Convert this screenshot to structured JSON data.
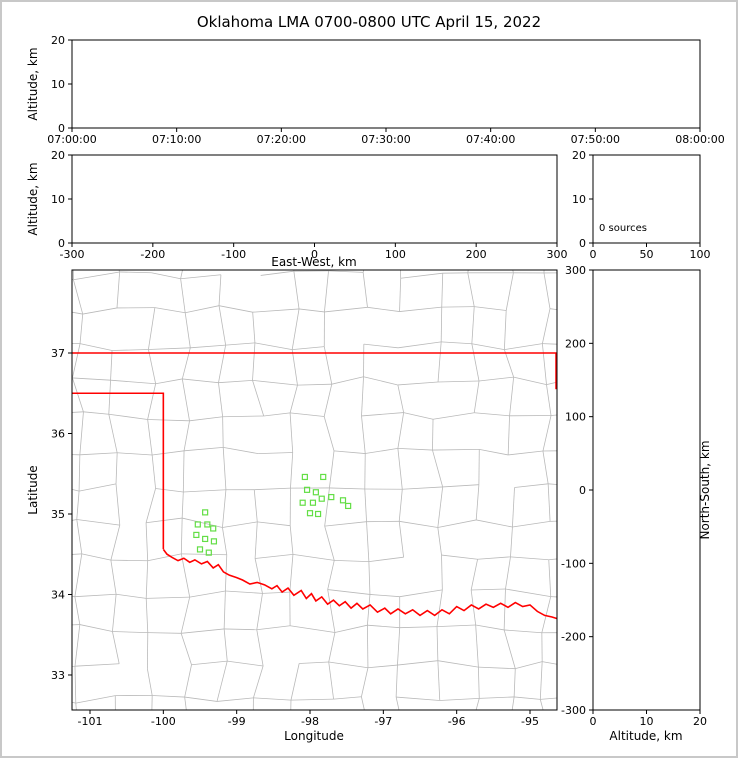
{
  "title": "Oklahoma LMA 0700-0800 UTC April 15, 2022",
  "colors": {
    "state_border": "#ff0000",
    "county": "#b9b9b9",
    "station": "#63de45",
    "axis": "#000000",
    "background": "#ffffff",
    "outer_border": "#c8c8c8"
  },
  "panels": {
    "time_height": {
      "ylabel": "Altitude, km",
      "xlim": [
        0,
        3600
      ],
      "ylim": [
        0,
        20
      ],
      "x_ticks": [
        0,
        600,
        1200,
        1800,
        2400,
        3000,
        3600
      ],
      "x_tick_labels": [
        "07:00:00",
        "07:10:00",
        "07:20:00",
        "07:30:00",
        "07:40:00",
        "07:50:00",
        "08:00:00"
      ],
      "y_ticks": [
        0,
        10,
        20
      ],
      "y_tick_labels": [
        "0",
        "10",
        "20"
      ]
    },
    "ew_height": {
      "ylabel": "Altitude, km",
      "xlabel": "East-West, km",
      "xlim": [
        -300,
        300
      ],
      "ylim": [
        0,
        20
      ],
      "x_ticks": [
        -300,
        -200,
        -100,
        0,
        100,
        200,
        300
      ],
      "x_tick_labels": [
        "-300",
        "-200",
        "-100",
        "0",
        "100",
        "200",
        "300"
      ],
      "y_ticks": [
        0,
        10,
        20
      ],
      "y_tick_labels": [
        "0",
        "10",
        "20"
      ]
    },
    "source_histogram": {
      "annotation": "0 sources",
      "xlim": [
        0,
        100
      ],
      "ylim": [
        0,
        20
      ],
      "x_ticks": [
        0,
        50,
        100
      ],
      "x_tick_labels": [
        "0",
        "50",
        "100"
      ],
      "y_ticks": [
        0,
        10,
        20
      ],
      "y_tick_labels": [
        "0",
        "10",
        "20"
      ]
    },
    "plan_view": {
      "xlabel": "Longitude",
      "ylabel": "Latitude",
      "xlim": [
        -101.2455,
        -94.6319
      ],
      "ylim": [
        32.565,
        38.031
      ],
      "x_ticks": [
        -101,
        -100,
        -99,
        -98,
        -97,
        -96,
        -95
      ],
      "x_tick_labels": [
        "-101",
        "-100",
        "-99",
        "-98",
        "-97",
        "-96",
        "-95"
      ],
      "y_ticks": [
        33,
        34,
        35,
        36,
        37
      ],
      "y_tick_labels": [
        "33",
        "34",
        "35",
        "36",
        "37"
      ]
    },
    "ns_height": {
      "xlabel": "Altitude, km",
      "ylabel_right": "North-South, km",
      "xlim": [
        0,
        20
      ],
      "ylim": [
        -300,
        300
      ],
      "x_ticks": [
        0,
        10,
        20
      ],
      "x_tick_labels": [
        "0",
        "10",
        "20"
      ],
      "y_ticks": [
        300,
        200,
        100,
        0,
        -100,
        -200,
        -300
      ],
      "y_tick_labels": [
        "300",
        "200",
        "100",
        "0",
        "-100",
        "-200",
        "-300"
      ]
    }
  },
  "chart_data": {
    "type": "scatter",
    "title": "Oklahoma LMA 0700-0800 UTC April 15, 2022",
    "time_range_utc": [
      "07:00:00",
      "08:00:00"
    ],
    "date": "April 15, 2022",
    "sources_count": 0,
    "lightning_sources": [],
    "stations_lon_lat": [
      [
        -99.43,
        35.02
      ],
      [
        -99.53,
        34.87
      ],
      [
        -99.4,
        34.87
      ],
      [
        -99.32,
        34.82
      ],
      [
        -99.55,
        34.74
      ],
      [
        -99.43,
        34.69
      ],
      [
        -99.31,
        34.66
      ],
      [
        -99.5,
        34.56
      ],
      [
        -99.38,
        34.52
      ],
      [
        -98.07,
        35.46
      ],
      [
        -97.82,
        35.46
      ],
      [
        -98.04,
        35.3
      ],
      [
        -97.92,
        35.27
      ],
      [
        -98.1,
        35.14
      ],
      [
        -97.96,
        35.14
      ],
      [
        -97.84,
        35.19
      ],
      [
        -97.71,
        35.21
      ],
      [
        -98.0,
        35.01
      ],
      [
        -97.89,
        35.0
      ],
      [
        -97.55,
        35.17
      ],
      [
        -97.48,
        35.1
      ]
    ],
    "state_border_lon_lat": {
      "north": [
        [
          -101.25,
          37.0
        ],
        [
          -94.63,
          37.0
        ]
      ],
      "east": [
        [
          -94.645,
          37.0
        ],
        [
          -94.645,
          36.55
        ]
      ],
      "panhandle_and_west": [
        [
          -101.25,
          36.5
        ],
        [
          -100.0,
          36.5
        ],
        [
          -100.0,
          34.563
        ]
      ],
      "red_river_south": [
        [
          -100.0,
          34.56
        ],
        [
          -99.95,
          34.5
        ],
        [
          -99.88,
          34.46
        ],
        [
          -99.8,
          34.42
        ],
        [
          -99.72,
          34.45
        ],
        [
          -99.64,
          34.4
        ],
        [
          -99.57,
          34.43
        ],
        [
          -99.48,
          34.38
        ],
        [
          -99.4,
          34.41
        ],
        [
          -99.32,
          34.33
        ],
        [
          -99.25,
          34.37
        ],
        [
          -99.18,
          34.28
        ],
        [
          -99.1,
          34.24
        ],
        [
          -99.0,
          34.21
        ],
        [
          -98.92,
          34.18
        ],
        [
          -98.82,
          34.13
        ],
        [
          -98.72,
          34.15
        ],
        [
          -98.62,
          34.12
        ],
        [
          -98.52,
          34.07
        ],
        [
          -98.45,
          34.11
        ],
        [
          -98.38,
          34.03
        ],
        [
          -98.3,
          34.08
        ],
        [
          -98.22,
          33.99
        ],
        [
          -98.12,
          34.05
        ],
        [
          -98.05,
          33.95
        ],
        [
          -97.98,
          34.01
        ],
        [
          -97.92,
          33.92
        ],
        [
          -97.84,
          33.97
        ],
        [
          -97.76,
          33.88
        ],
        [
          -97.68,
          33.93
        ],
        [
          -97.6,
          33.86
        ],
        [
          -97.52,
          33.91
        ],
        [
          -97.44,
          33.83
        ],
        [
          -97.36,
          33.89
        ],
        [
          -97.28,
          33.82
        ],
        [
          -97.18,
          33.87
        ],
        [
          -97.08,
          33.78
        ],
        [
          -96.98,
          33.83
        ],
        [
          -96.9,
          33.76
        ],
        [
          -96.8,
          33.82
        ],
        [
          -96.7,
          33.76
        ],
        [
          -96.6,
          33.81
        ],
        [
          -96.5,
          33.74
        ],
        [
          -96.4,
          33.8
        ],
        [
          -96.3,
          33.74
        ],
        [
          -96.2,
          33.81
        ],
        [
          -96.1,
          33.76
        ],
        [
          -96.0,
          33.85
        ],
        [
          -95.9,
          33.8
        ],
        [
          -95.8,
          33.87
        ],
        [
          -95.7,
          33.82
        ],
        [
          -95.6,
          33.88
        ],
        [
          -95.5,
          33.84
        ],
        [
          -95.4,
          33.89
        ],
        [
          -95.3,
          33.84
        ],
        [
          -95.2,
          33.9
        ],
        [
          -95.1,
          33.85
        ],
        [
          -95.0,
          33.87
        ],
        [
          -94.9,
          33.79
        ],
        [
          -94.8,
          33.74
        ],
        [
          -94.7,
          33.72
        ],
        [
          -94.63,
          33.7
        ]
      ]
    }
  }
}
